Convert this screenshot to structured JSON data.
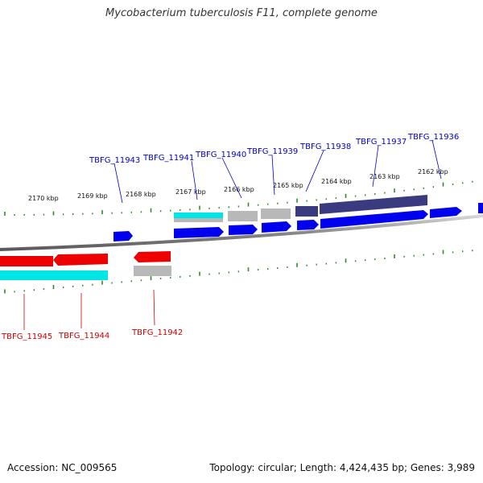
{
  "title": "Mycobacterium tuberculosis F11, complete genome",
  "footer": {
    "accession": "Accession: NC_009565",
    "topology": "Topology: circular; Length: 4,424,435 bp; Genes: 3,989"
  },
  "colors": {
    "backbone": "#8a8a8a",
    "tick": "#2e8b2e",
    "top_label": "#0000cc",
    "bottom_label": "#cc0000",
    "blue_gene": "#0000ee",
    "red_gene": "#ee0000",
    "cyan_gene": "#00e5e5",
    "gray_gene": "#b8b8b8",
    "navy_gene": "#3a3a80"
  },
  "position_labels": [
    "2170 kbp",
    "2169 kbp",
    "2168 kbp",
    "2167 kbp",
    "2166 kbp",
    "2165 kbp",
    "2164 kbp",
    "2163 kbp",
    "2162 kbp"
  ],
  "top_genes": [
    {
      "id": "TBFG_11943"
    },
    {
      "id": "TBFG_11941"
    },
    {
      "id": "TBFG_11940"
    },
    {
      "id": "TBFG_11939"
    },
    {
      "id": "TBFG_11938"
    },
    {
      "id": "TBFG_11937"
    },
    {
      "id": "TBFG_11936"
    }
  ],
  "bottom_genes": [
    {
      "id": "TBFG_11945"
    },
    {
      "id": "TBFG_11944"
    },
    {
      "id": "TBFG_11942"
    }
  ]
}
